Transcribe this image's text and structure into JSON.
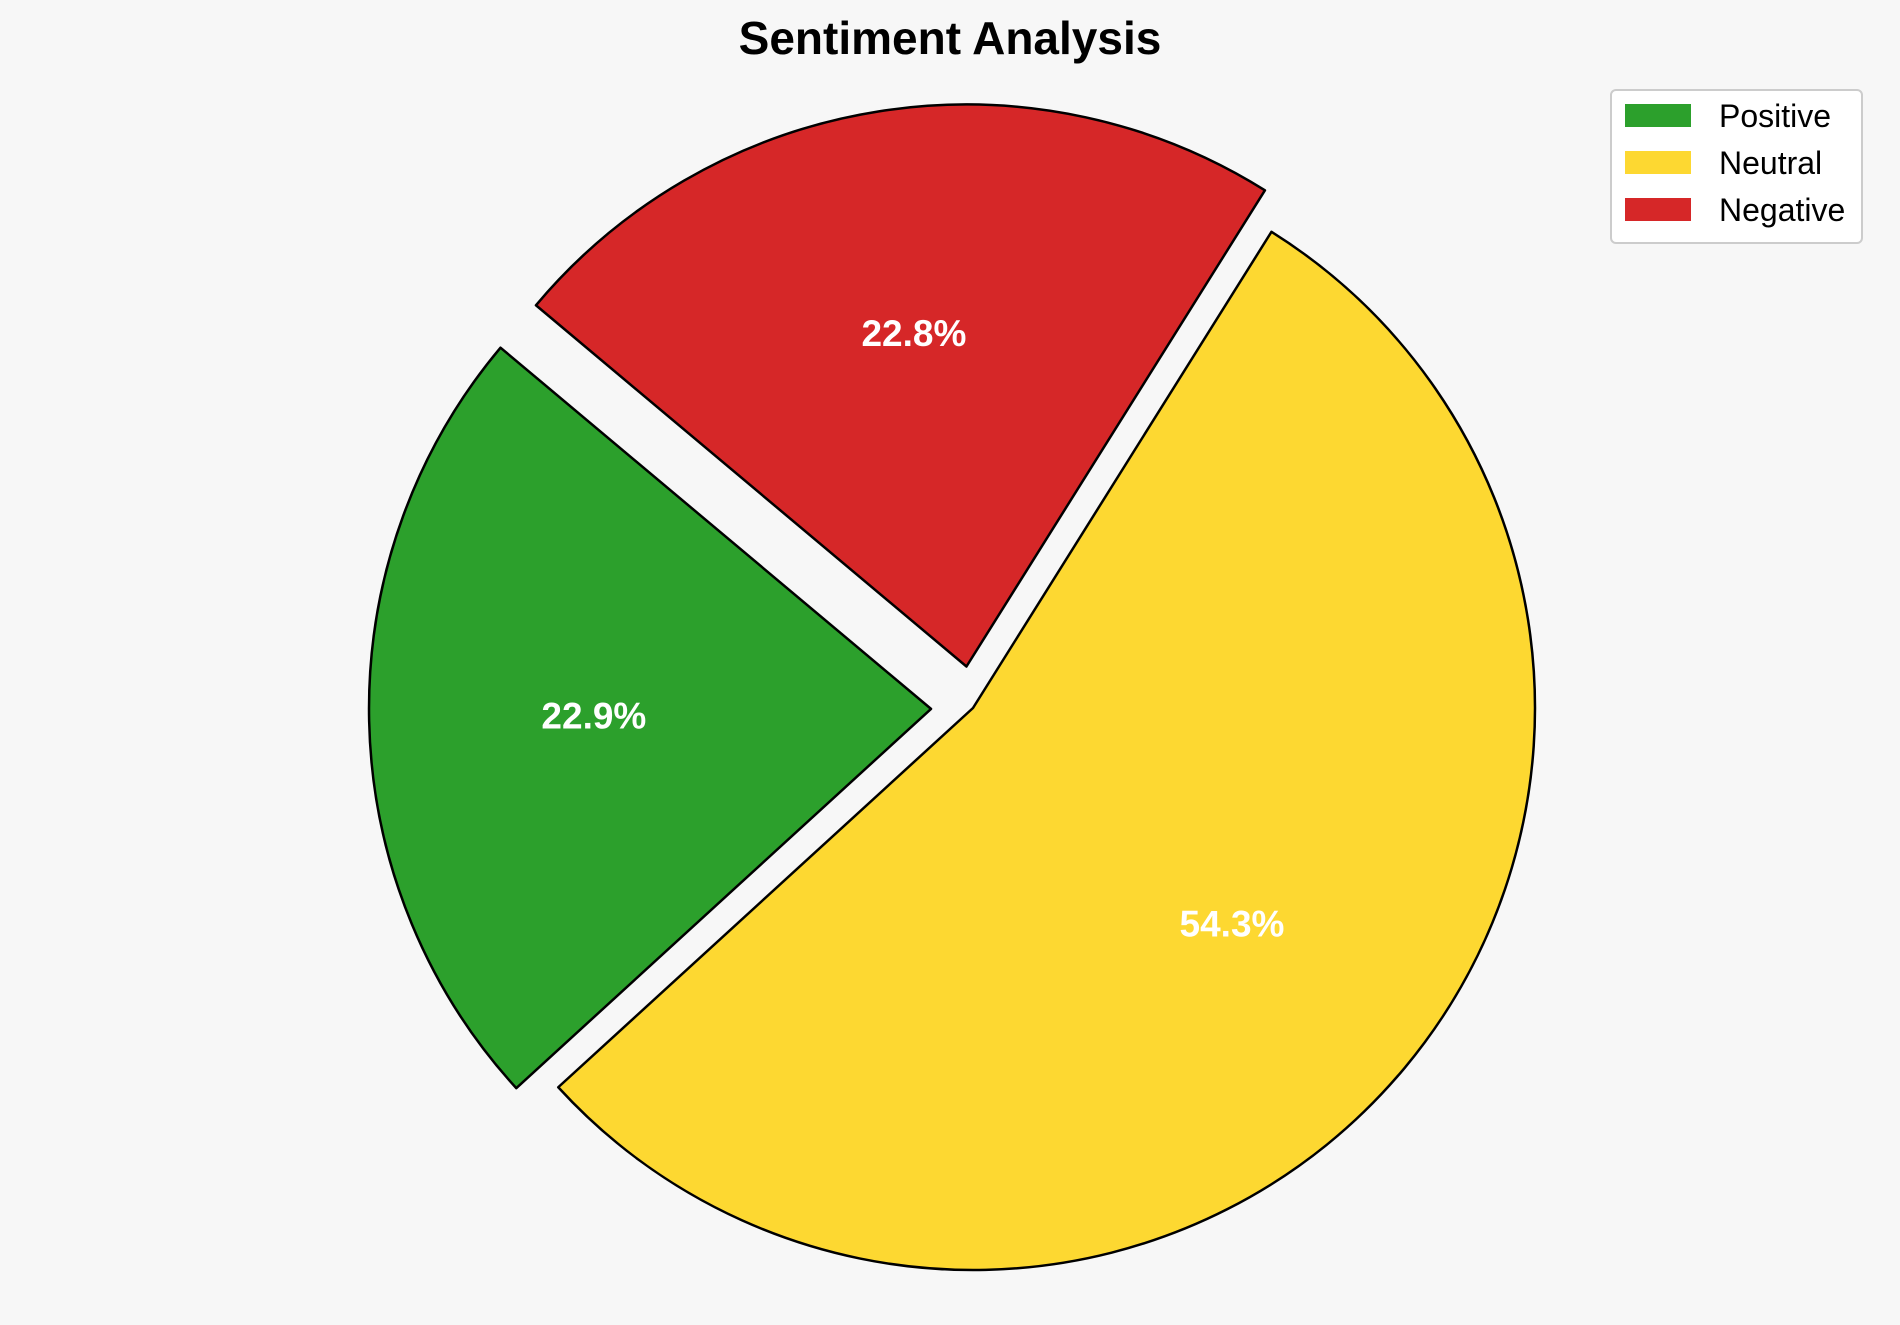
{
  "chart_data": {
    "type": "pie",
    "title": "Sentiment Analysis",
    "categories": [
      "Positive",
      "Neutral",
      "Negative"
    ],
    "values": [
      22.9,
      54.3,
      22.8
    ],
    "labels": [
      "22.9%",
      "54.3%",
      "22.8%"
    ],
    "colors": [
      "#2ca02c",
      "#fdd831",
      "#d62728"
    ],
    "exploded": [
      true,
      false,
      true
    ],
    "start_angle_deg": 140,
    "direction": "counterclockwise",
    "edge_color": "#000000",
    "legend": {
      "placement": "top-right",
      "entries": [
        "Positive",
        "Neutral",
        "Negative"
      ]
    }
  }
}
